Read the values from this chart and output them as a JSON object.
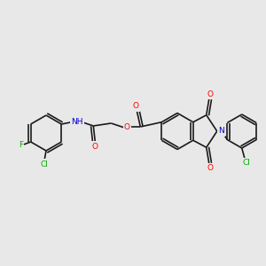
{
  "background_color": "#e8e8e8",
  "bond_color": "#1a1a1a",
  "atom_colors": {
    "O": "#ff0000",
    "N": "#0000cc",
    "Cl": "#00aa00",
    "F": "#00aa00",
    "H": "#666666",
    "C": "#1a1a1a"
  },
  "figsize": [
    3.0,
    3.0
  ],
  "dpi": 100
}
